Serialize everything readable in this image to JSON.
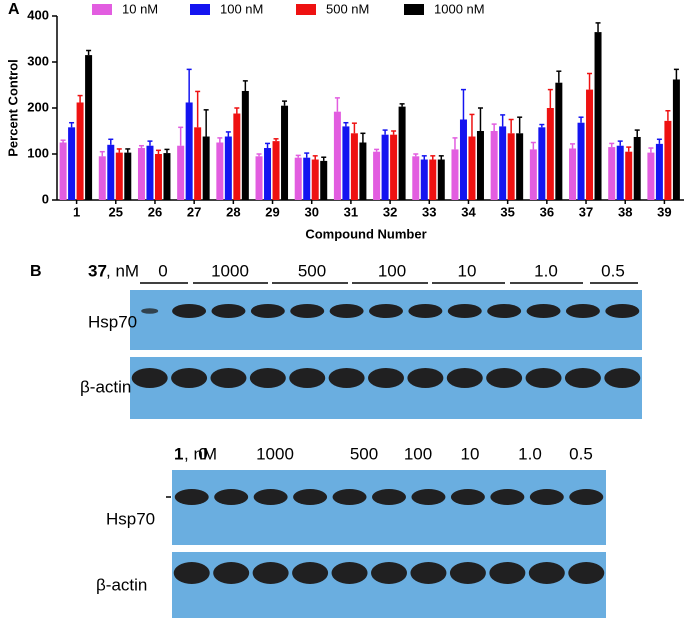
{
  "panel_a_label": "A",
  "chart_data": {
    "type": "bar",
    "x_label": "Compound Number",
    "y_label": "Percent Control",
    "categories": [
      "1",
      "25",
      "26",
      "27",
      "28",
      "29",
      "30",
      "31",
      "32",
      "33",
      "34",
      "35",
      "36",
      "37",
      "38",
      "39"
    ],
    "series": [
      {
        "name": "10 nM",
        "color": "#e25de0",
        "values": [
          125,
          95,
          113,
          118,
          125,
          95,
          92,
          192,
          105,
          95,
          110,
          150,
          110,
          112,
          115,
          103
        ],
        "errors": [
          5,
          10,
          5,
          40,
          10,
          5,
          5,
          30,
          5,
          5,
          25,
          15,
          15,
          10,
          8,
          10
        ]
      },
      {
        "name": "100 nM",
        "color": "#1414f0",
        "values": [
          158,
          120,
          118,
          212,
          138,
          113,
          92,
          160,
          142,
          88,
          175,
          160,
          158,
          168,
          118,
          122
        ],
        "errors": [
          10,
          12,
          10,
          72,
          10,
          10,
          10,
          8,
          10,
          8,
          65,
          25,
          6,
          12,
          10,
          10
        ]
      },
      {
        "name": "500 nM",
        "color": "#ee1111",
        "values": [
          212,
          103,
          100,
          158,
          188,
          128,
          88,
          145,
          142,
          88,
          138,
          145,
          200,
          240,
          105,
          172
        ],
        "errors": [
          15,
          8,
          8,
          78,
          12,
          5,
          8,
          22,
          8,
          8,
          48,
          30,
          40,
          35,
          10,
          22
        ]
      },
      {
        "name": "1000 nM",
        "color": "#000000",
        "values": [
          315,
          103,
          102,
          138,
          237,
          205,
          85,
          125,
          203,
          88,
          150,
          145,
          255,
          365,
          137,
          262
        ],
        "errors": [
          10,
          8,
          8,
          58,
          22,
          10,
          8,
          20,
          6,
          8,
          50,
          35,
          25,
          20,
          15,
          22
        ]
      }
    ],
    "ylim": [
      0,
      400
    ],
    "yticks": [
      0,
      100,
      200,
      300,
      400
    ],
    "legend": "top"
  },
  "panel_b": {
    "label": "B",
    "blot_1": {
      "compound": "37",
      "unit": ", nM",
      "lanes": [
        "0",
        "1000",
        "500",
        "100",
        "10",
        "1.0",
        "0.5"
      ],
      "rows": [
        "Hsp70",
        "β-actin"
      ]
    },
    "blot_2": {
      "compound": "1",
      "unit": ", nM",
      "lanes": [
        "0",
        "1000",
        "500",
        "100",
        "10",
        "1.0",
        "0.5"
      ],
      "rows": [
        "Hsp70",
        "β-actin"
      ]
    }
  }
}
